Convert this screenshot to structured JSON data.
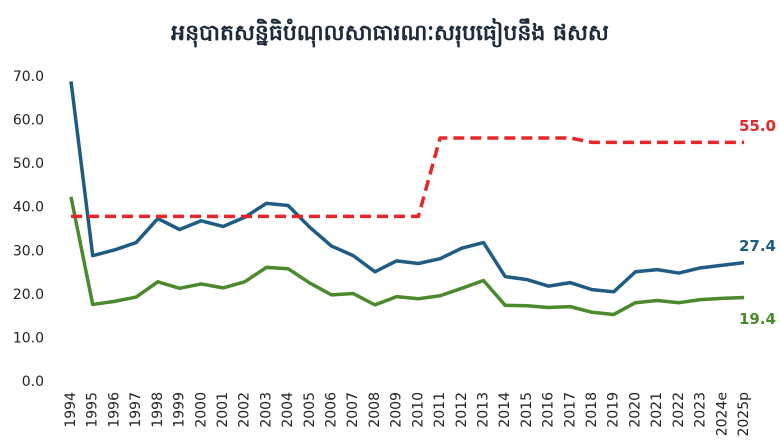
{
  "chart_data": {
    "type": "line",
    "title": "អនុបាតសន្និធិបំណុលសាធារណៈសរុបធៀបនឹង ផសស",
    "categories": [
      "1994",
      "1995",
      "1996",
      "1997",
      "1998",
      "1999",
      "2000",
      "2001",
      "2002",
      "2003",
      "2004",
      "2005",
      "2006",
      "2007",
      "2008",
      "2009",
      "2010",
      "2011",
      "2012",
      "2013",
      "2014",
      "2015",
      "2016",
      "2017",
      "2018",
      "2019",
      "2020",
      "2021",
      "2022",
      "2023",
      "2024e",
      "2025p"
    ],
    "series": [
      {
        "color": "#1f5b82",
        "dashed": false,
        "values": [
          69,
          29,
          30.3,
          32,
          37.5,
          35,
          37,
          35.7,
          37.8,
          41,
          40.5,
          35.5,
          31.2,
          29,
          25.3,
          27.8,
          27.2,
          28.3,
          30.7,
          32,
          24.2,
          23.5,
          22,
          22.8,
          21.2,
          20.7,
          25.3,
          25.8,
          25,
          26.2,
          26.8,
          27.4
        ],
        "value_labels": [
          null,
          null,
          null,
          null,
          null,
          null,
          null,
          null,
          null,
          null,
          null,
          null,
          null,
          null,
          null,
          null,
          null,
          null,
          null,
          null,
          null,
          null,
          null,
          null,
          null,
          null,
          null,
          null,
          null,
          null,
          null,
          "27.4"
        ]
      },
      {
        "color": "#4b8a2c",
        "dashed": false,
        "values": [
          42.5,
          17.8,
          18.5,
          19.5,
          23,
          21.5,
          22.5,
          21.6,
          23,
          26.3,
          26,
          22.7,
          20,
          20.3,
          17.7,
          19.6,
          19.1,
          19.8,
          21.5,
          23.3,
          17.6,
          17.5,
          17.1,
          17.3,
          16,
          15.5,
          18.2,
          18.7,
          18.2,
          18.9,
          19.2,
          19.4
        ],
        "value_labels": [
          null,
          null,
          null,
          null,
          null,
          null,
          null,
          null,
          null,
          null,
          null,
          null,
          null,
          null,
          null,
          null,
          null,
          null,
          null,
          null,
          null,
          null,
          null,
          null,
          null,
          null,
          null,
          null,
          null,
          null,
          null,
          "19.4"
        ]
      },
      {
        "color": "#e8262a",
        "dashed": true,
        "values": [
          38,
          38,
          38,
          38,
          38,
          38,
          38,
          38,
          38,
          38,
          38,
          38,
          38,
          38,
          38,
          38,
          38,
          56,
          56,
          56,
          56,
          56,
          56,
          56,
          55,
          55,
          55,
          55,
          55,
          55,
          55,
          55
        ],
        "value_labels": [
          null,
          null,
          null,
          null,
          null,
          null,
          null,
          null,
          null,
          null,
          null,
          null,
          null,
          null,
          null,
          null,
          null,
          null,
          null,
          null,
          null,
          null,
          null,
          null,
          null,
          null,
          null,
          null,
          null,
          null,
          null,
          "55.0"
        ]
      }
    ],
    "ylim": [
      0,
      70
    ],
    "yticks": [
      {
        "value": 0,
        "label": "0.0"
      },
      {
        "value": 10,
        "label": "10.0"
      },
      {
        "value": 20,
        "label": "20.0"
      },
      {
        "value": 30,
        "label": "30.0"
      },
      {
        "value": 40,
        "label": "40.0"
      },
      {
        "value": 50,
        "label": "50.0"
      },
      {
        "value": 60,
        "label": "60.0"
      },
      {
        "value": 70,
        "label": "70.0"
      }
    ],
    "grid": false
  }
}
